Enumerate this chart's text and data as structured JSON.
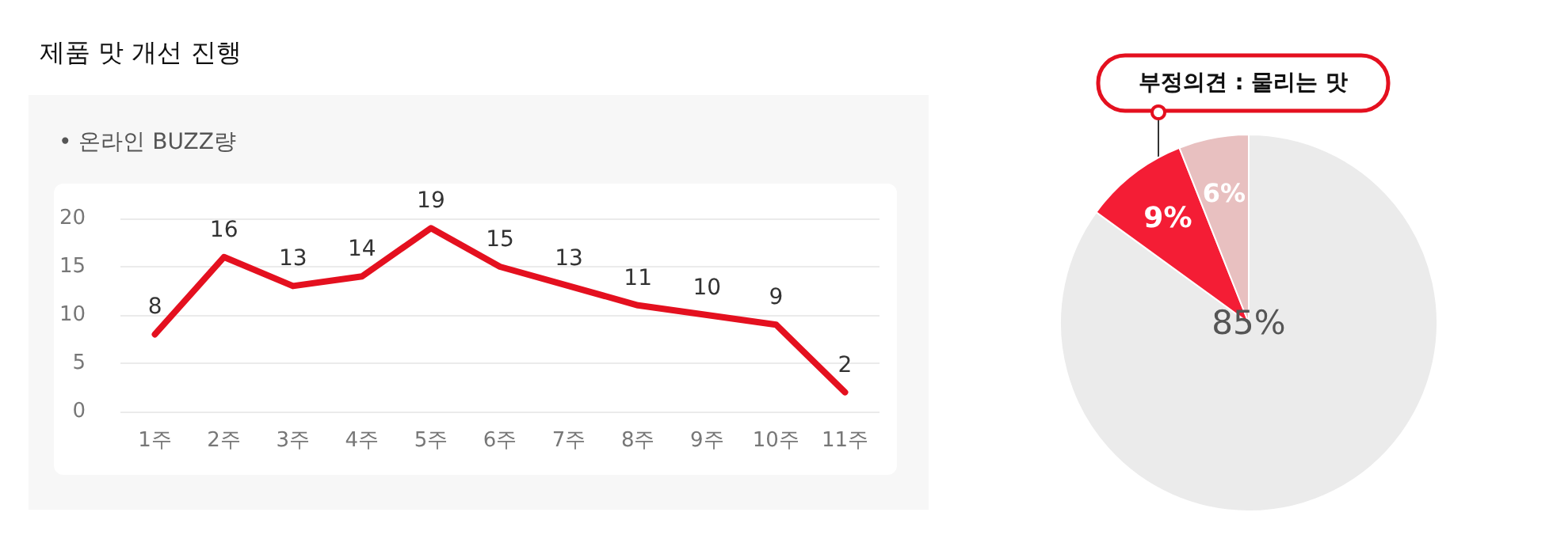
{
  "chart_data": [
    {
      "type": "line",
      "title": "제품 맛 개선 진행",
      "subtitle": "• 온라인 BUZZ량",
      "categories": [
        "1주",
        "2주",
        "3주",
        "4주",
        "5주",
        "6주",
        "7주",
        "8주",
        "9주",
        "10주",
        "11주"
      ],
      "series": [
        {
          "color": "#e4101f",
          "values": [
            8,
            16,
            13,
            14,
            19,
            15,
            13,
            11,
            10,
            9,
            2
          ]
        }
      ],
      "ylim": [
        0,
        20
      ],
      "yticks": [
        0,
        5,
        10,
        15,
        20
      ],
      "grid": "y",
      "data_labels": true,
      "marker": "none",
      "line_style": "solid"
    },
    {
      "type": "pie",
      "categories": [
        null,
        null,
        null
      ],
      "values": [
        85,
        9,
        6
      ],
      "colors": [
        "#ebebeb",
        "#f41d35",
        "#e8c0c0"
      ],
      "value_labels": [
        "85%",
        "9%",
        "6%"
      ],
      "data_labels": true,
      "annotations": [
        "부정의견 : 물리는 맛"
      ]
    }
  ]
}
